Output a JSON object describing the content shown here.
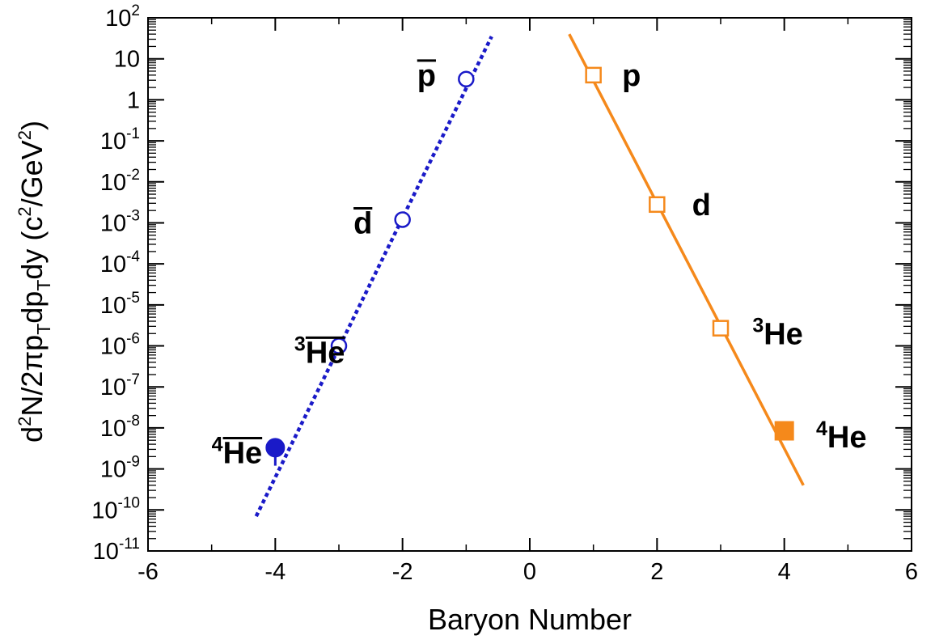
{
  "chart_data": {
    "type": "scatter",
    "title": "",
    "xlabel": "Baryon Number",
    "ylabel": {
      "p1": "d",
      "s1": "2",
      "p2": "N/2πp",
      "b1": "T",
      "p3": "dp",
      "b2": "T",
      "p4": "dy (c",
      "s2": "2",
      "p5": "/GeV",
      "s3": "2",
      "p6": ")"
    },
    "xlim": [
      -6,
      6
    ],
    "ylim": [
      1e-11,
      100
    ],
    "yscale": "log",
    "x_ticks": [
      "-6",
      "-4",
      "-2",
      "0",
      "2",
      "4",
      "6"
    ],
    "y_ticks": [
      {
        "base": "10",
        "exp": "-11"
      },
      {
        "base": "10",
        "exp": "-10"
      },
      {
        "base": "10",
        "exp": "-9"
      },
      {
        "base": "10",
        "exp": "-8"
      },
      {
        "base": "10",
        "exp": "-7"
      },
      {
        "base": "10",
        "exp": "-6"
      },
      {
        "base": "10",
        "exp": "-5"
      },
      {
        "base": "10",
        "exp": "-4"
      },
      {
        "base": "10",
        "exp": "-3"
      },
      {
        "base": "10",
        "exp": "-2"
      },
      {
        "base": "10",
        "exp": "-1"
      },
      {
        "base": "1",
        "exp": ""
      },
      {
        "base": "10",
        "exp": ""
      },
      {
        "base": "10",
        "exp": "2"
      }
    ],
    "grid": false,
    "colors": {
      "antimatter": "#1a1ac8",
      "matter": "#f5891b"
    },
    "antimatter_points": [
      {
        "x": -1,
        "y": 3.2,
        "marker": "open-circle"
      },
      {
        "x": -2,
        "y": 0.0012,
        "marker": "open-circle"
      },
      {
        "x": -3,
        "y": 1e-06,
        "marker": "open-circle"
      },
      {
        "x": -4,
        "y": 3.3e-09,
        "marker": "filled-circle",
        "err_low": 1.2e-09
      }
    ],
    "matter_points": [
      {
        "x": 1,
        "y": 4.0,
        "marker": "open-square"
      },
      {
        "x": 2,
        "y": 0.0028,
        "marker": "open-square"
      },
      {
        "x": 3,
        "y": 2.7e-06,
        "marker": "open-square"
      },
      {
        "x": 4,
        "y": 8.5e-09,
        "marker": "filled-square"
      }
    ],
    "antimatter_fit": {
      "x": [
        -4.3,
        -0.6
      ],
      "y": [
        7e-11,
        35
      ],
      "style": "dotted"
    },
    "matter_fit": {
      "x": [
        0.62,
        4.3
      ],
      "y": [
        40,
        4e-10
      ],
      "style": "solid"
    },
    "annotations": [
      {
        "prefix": "",
        "text": "p",
        "overline": true,
        "x": -1.77,
        "y": 4
      },
      {
        "prefix": "",
        "text": "d",
        "overline": true,
        "x": -2.77,
        "y": 0.001
      },
      {
        "prefix": "3",
        "text": "He",
        "overline": true,
        "x": -3.7,
        "y": 7e-07
      },
      {
        "prefix": "4",
        "text": "He",
        "overline": true,
        "x": -5.0,
        "y": 2.5e-09
      },
      {
        "prefix": "",
        "text": "p",
        "overline": false,
        "x": 1.45,
        "y": 4
      },
      {
        "prefix": "",
        "text": "d",
        "overline": false,
        "x": 2.55,
        "y": 0.0028
      },
      {
        "prefix": "3",
        "text": "He",
        "overline": false,
        "x": 3.5,
        "y": 2e-06
      },
      {
        "prefix": "4",
        "text": "He",
        "overline": false,
        "x": 4.5,
        "y": 6e-09
      }
    ]
  }
}
